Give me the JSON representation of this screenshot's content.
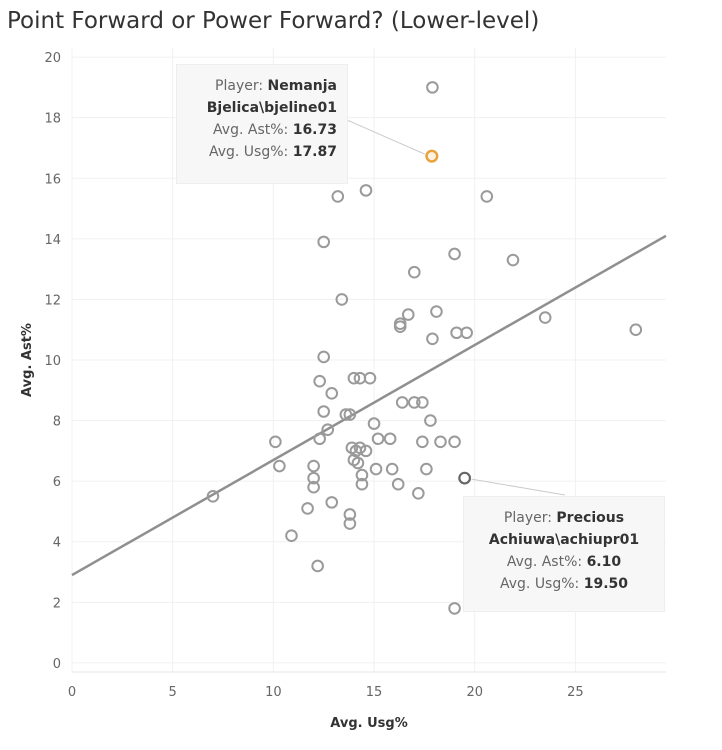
{
  "title": "Point Forward or Power Forward? (Lower-level)",
  "chart_data": {
    "type": "scatter",
    "xlabel": "Avg. Usg%",
    "ylabel": "Avg. Ast%",
    "xlim": [
      0,
      29.5
    ],
    "ylim": [
      -0.3,
      20.3
    ],
    "xticks": [
      0,
      5,
      10,
      15,
      20,
      25
    ],
    "yticks": [
      0,
      2,
      4,
      6,
      8,
      10,
      12,
      14,
      16,
      18,
      20
    ],
    "grid": true,
    "trend_line": {
      "x": [
        0,
        29.5
      ],
      "y": [
        2.9,
        14.1
      ]
    },
    "colors": {
      "point": "#9a9a9a",
      "highlight": "#e8a33c",
      "selected": "#666666",
      "trend": "#8f8f8f"
    },
    "points": [
      {
        "x": 7.0,
        "y": 5.5
      },
      {
        "x": 10.1,
        "y": 7.3
      },
      {
        "x": 10.3,
        "y": 6.5
      },
      {
        "x": 10.9,
        "y": 4.2
      },
      {
        "x": 11.7,
        "y": 5.1
      },
      {
        "x": 12.0,
        "y": 6.5
      },
      {
        "x": 12.0,
        "y": 6.1
      },
      {
        "x": 12.0,
        "y": 5.8
      },
      {
        "x": 12.2,
        "y": 3.2
      },
      {
        "x": 12.3,
        "y": 9.3
      },
      {
        "x": 12.3,
        "y": 7.4
      },
      {
        "x": 12.5,
        "y": 13.9
      },
      {
        "x": 12.5,
        "y": 10.1
      },
      {
        "x": 12.5,
        "y": 8.3
      },
      {
        "x": 12.7,
        "y": 7.7
      },
      {
        "x": 12.9,
        "y": 8.9
      },
      {
        "x": 12.9,
        "y": 5.3
      },
      {
        "x": 13.2,
        "y": 15.4
      },
      {
        "x": 13.4,
        "y": 12.0
      },
      {
        "x": 13.6,
        "y": 8.2
      },
      {
        "x": 13.8,
        "y": 8.2
      },
      {
        "x": 13.8,
        "y": 4.9
      },
      {
        "x": 13.8,
        "y": 4.6
      },
      {
        "x": 13.9,
        "y": 7.1
      },
      {
        "x": 14.0,
        "y": 9.4
      },
      {
        "x": 14.0,
        "y": 6.7
      },
      {
        "x": 14.1,
        "y": 7.0
      },
      {
        "x": 14.2,
        "y": 6.6
      },
      {
        "x": 14.3,
        "y": 9.4
      },
      {
        "x": 14.3,
        "y": 7.1
      },
      {
        "x": 14.4,
        "y": 6.2
      },
      {
        "x": 14.4,
        "y": 5.9
      },
      {
        "x": 14.6,
        "y": 15.6
      },
      {
        "x": 14.6,
        "y": 7.0
      },
      {
        "x": 14.8,
        "y": 9.4
      },
      {
        "x": 15.0,
        "y": 7.9
      },
      {
        "x": 15.1,
        "y": 6.4
      },
      {
        "x": 15.2,
        "y": 7.4
      },
      {
        "x": 15.8,
        "y": 7.4
      },
      {
        "x": 15.9,
        "y": 6.4
      },
      {
        "x": 16.2,
        "y": 5.9
      },
      {
        "x": 16.3,
        "y": 11.1
      },
      {
        "x": 16.3,
        "y": 11.2
      },
      {
        "x": 16.4,
        "y": 8.6
      },
      {
        "x": 16.7,
        "y": 11.5
      },
      {
        "x": 17.0,
        "y": 12.9
      },
      {
        "x": 17.0,
        "y": 8.6
      },
      {
        "x": 17.2,
        "y": 5.6
      },
      {
        "x": 17.4,
        "y": 8.6
      },
      {
        "x": 17.4,
        "y": 7.3
      },
      {
        "x": 17.6,
        "y": 6.4
      },
      {
        "x": 17.8,
        "y": 8.0
      },
      {
        "x": 17.9,
        "y": 19.0
      },
      {
        "x": 17.9,
        "y": 10.7
      },
      {
        "x": 18.1,
        "y": 11.6
      },
      {
        "x": 18.3,
        "y": 7.3
      },
      {
        "x": 19.0,
        "y": 13.5
      },
      {
        "x": 19.1,
        "y": 10.9
      },
      {
        "x": 19.0,
        "y": 7.3
      },
      {
        "x": 19.0,
        "y": 1.8
      },
      {
        "x": 19.6,
        "y": 10.9
      },
      {
        "x": 20.6,
        "y": 15.4
      },
      {
        "x": 21.9,
        "y": 13.3
      },
      {
        "x": 23.5,
        "y": 11.4
      },
      {
        "x": 28.0,
        "y": 11.0
      }
    ],
    "highlight_point": {
      "x": 17.87,
      "y": 16.73
    },
    "selected_point": {
      "x": 19.5,
      "y": 6.1
    }
  },
  "tooltips": [
    {
      "player_label": "Player: ",
      "player_value": "Nemanja Bjelica\\bjeline01",
      "ast_label": "Avg. Ast%: ",
      "ast_value": "16.73",
      "usg_label": "Avg. Usg%: ",
      "usg_value": "17.87"
    },
    {
      "player_label": "Player: ",
      "player_value": "Precious Achiuwa\\achiupr01",
      "ast_label": "Avg. Ast%: ",
      "ast_value": "6.10",
      "usg_label": "Avg. Usg%: ",
      "usg_value": "19.50"
    }
  ]
}
